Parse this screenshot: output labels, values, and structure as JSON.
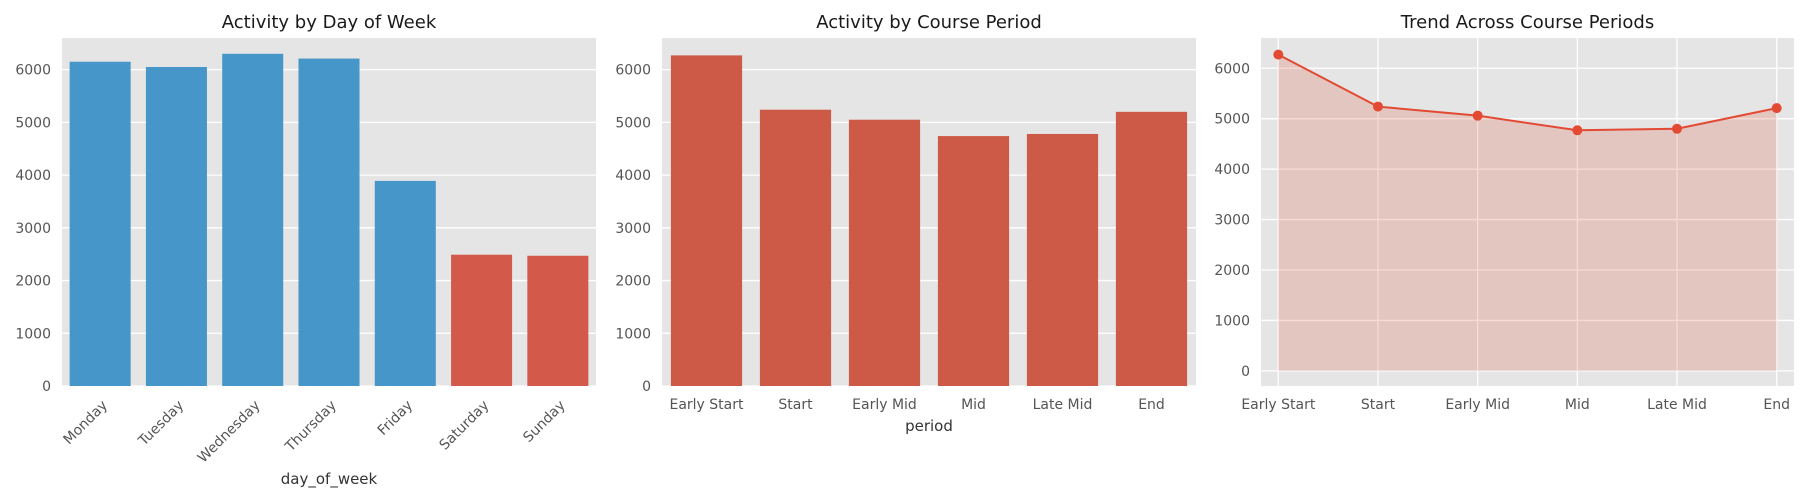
{
  "chart_data": [
    {
      "type": "bar",
      "title": "Activity by Day of Week",
      "xlabel": "day_of_week",
      "ylabel": "",
      "categories": [
        "Monday",
        "Tuesday",
        "Wednesday",
        "Thursday",
        "Friday",
        "Saturday",
        "Sunday"
      ],
      "values": [
        6150,
        6050,
        6300,
        6210,
        3890,
        2490,
        2470
      ],
      "bar_colors": [
        "#4796c9",
        "#4796c9",
        "#4796c9",
        "#4796c9",
        "#4796c9",
        "#d35a4a",
        "#d35a4a"
      ],
      "ylim": [
        0,
        6600
      ],
      "yticks": [
        0,
        1000,
        2000,
        3000,
        4000,
        5000,
        6000
      ],
      "xtick_rotation": 45,
      "grid": true
    },
    {
      "type": "bar",
      "title": "Activity by Course Period",
      "xlabel": "period",
      "ylabel": "",
      "categories": [
        "Early Start",
        "Start",
        "Early Mid",
        "Mid",
        "Late Mid",
        "End"
      ],
      "values": [
        6270,
        5240,
        5050,
        4740,
        4780,
        5200
      ],
      "bar_colors": [
        "#cd5a47",
        "#cd5a47",
        "#cd5a47",
        "#cd5a47",
        "#cd5a47",
        "#cd5a47"
      ],
      "ylim": [
        0,
        6600
      ],
      "yticks": [
        0,
        1000,
        2000,
        3000,
        4000,
        5000,
        6000
      ],
      "grid": true
    },
    {
      "type": "area",
      "title": "Trend Across Course Periods",
      "xlabel": "",
      "ylabel": "",
      "categories": [
        "Early Start",
        "Start",
        "Early Mid",
        "Mid",
        "Late Mid",
        "End"
      ],
      "values": [
        6270,
        5240,
        5060,
        4770,
        4800,
        5210
      ],
      "line_color": "#e24a33",
      "fill_color": "#e24a33",
      "fill_opacity": 0.2,
      "markers": true,
      "ylim": [
        -300,
        6600
      ],
      "yticks": [
        0,
        1000,
        2000,
        3000,
        4000,
        5000,
        6000
      ],
      "grid": true
    }
  ]
}
